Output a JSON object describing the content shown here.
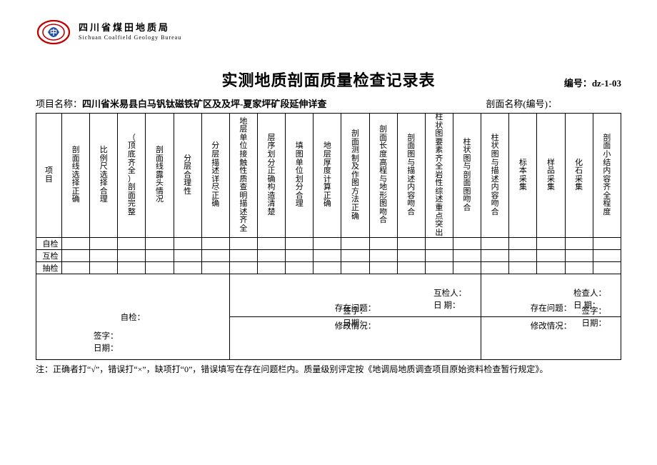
{
  "org": {
    "name_cn": "四川省煤田地质局",
    "name_en": "Sichuan  Coalfield  Geology  Bureau",
    "logo_ring_color": "#c00000",
    "logo_center_color": "#1f4ea1"
  },
  "title": "实测地质剖面质量检查记录表",
  "doc_no_label": "编号：",
  "doc_no": "dz-1-03",
  "project_label": "项目名称：",
  "project_name": "四川省米易县白马钒钛磁铁矿区及及坪-夏家坪矿段延伸详查",
  "section_label": "剖面名称(编号)：",
  "section_name": "",
  "columns": [
    "项   目",
    "剖面线选择正确",
    "比例尺选择合理",
    "（顶底齐全）剖面完整",
    "剖面线露头情况",
    "分层合理性",
    "分层描述详尽正确",
    "地层单位接触性质查明描述齐全",
    "层序划分正确构造清楚",
    "填图单位划分合理",
    "地层厚度计算正确",
    "剖面测制及作图方法正确",
    "剖面长度高程与地形图吻合",
    "剖面图与描述内容吻合",
    "柱状图要素齐全岩性综述重点突出",
    "柱状图与剖面图吻合",
    "柱状图与描述内容吻合",
    "标本采集",
    "样品采集",
    "化石采集",
    "剖面小结内容齐全程度"
  ],
  "check_rows": [
    "自检",
    "互检",
    "抽检"
  ],
  "bottom": {
    "cell1_label": "自检：",
    "cell1_sig1": "签字：",
    "cell1_sig2": "日期：",
    "cell2_label": "存在问题：",
    "cell2_p1": "互检人：",
    "cell2_p2": "日    期：",
    "cell2_rev": "修改情况：",
    "cell2_sig1": "签字：",
    "cell2_sig2": "日期：",
    "cell3_label": "存在问题：",
    "cell3_p1": "检查人：",
    "cell3_p2": "日    期：",
    "cell3_rev": "修改情况：",
    "cell3_sig1": "签字：",
    "cell3_sig2": "日期："
  },
  "note": "注：正确者打“√”，错误打“×”，缺项打“0”，错误填写在存在问题栏内。质量级别评定按《地调局地质调查项目原始资料检查暂行规定》。",
  "style": {
    "page_bg": "#ffffff",
    "text_color": "#000000",
    "border_color": "#000000",
    "title_fontsize": 22,
    "body_fontsize": 12,
    "header_fontsize": 11
  }
}
